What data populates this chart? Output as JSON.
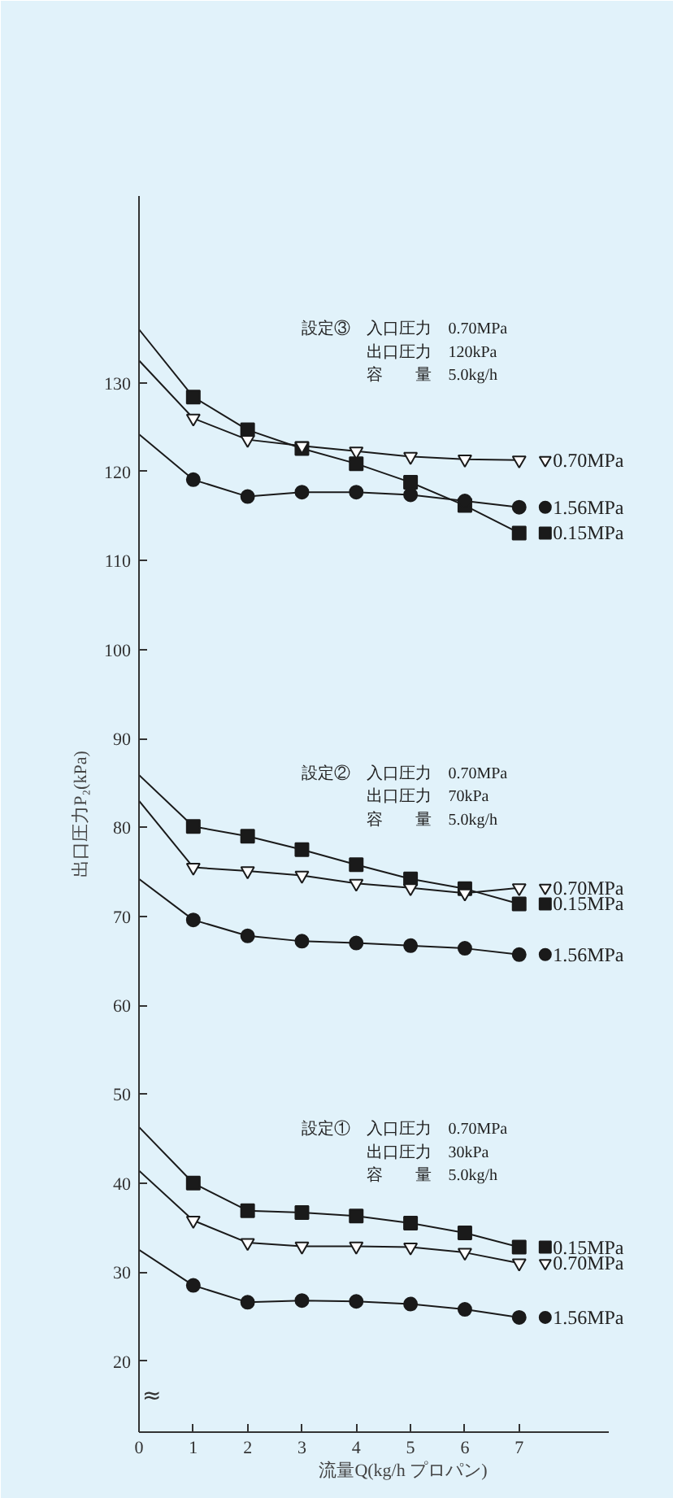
{
  "chart_data": {
    "type": "line",
    "xlabel": "流量Q(kg/h プロパン)",
    "ylabel": "出口圧力P₂(kPa)",
    "x": [
      0,
      1,
      2,
      3,
      4,
      5,
      6,
      7
    ],
    "xlim": [
      0,
      8.65
    ],
    "ylim": [
      12,
      151
    ],
    "xticks": [
      0,
      1,
      2,
      3,
      4,
      5,
      6,
      7
    ],
    "yticks": [
      20,
      30,
      40,
      50,
      60,
      70,
      80,
      90,
      100,
      110,
      120,
      130
    ],
    "grid": false,
    "legend": "right",
    "line_style": "solid",
    "series": [
      {
        "name": "0.15MPa",
        "color": "#1a1a1a",
        "marker": "square",
        "values": [
          136,
          128.4,
          124.7,
          122.6,
          120.9,
          118.8,
          116.2,
          113.1
        ]
      },
      {
        "name": "0.70MPa",
        "color": "#1a1a1a",
        "marker": "triangle",
        "values": [
          132.5,
          126.0,
          123.6,
          122.9,
          122.3,
          121.7,
          121.4,
          121.3
        ]
      },
      {
        "name": "1.56MPa",
        "color": "#1a1a1a",
        "marker": "circle",
        "values": [
          124.2,
          119.1,
          117.2,
          117.7,
          117.7,
          117.4,
          116.7,
          116.0
        ]
      },
      {
        "name": "0.15MPa",
        "color": "#1a1a1a",
        "marker": "square",
        "values": [
          85.9,
          80.1,
          79.0,
          77.5,
          75.8,
          74.2,
          73.1,
          71.4
        ]
      },
      {
        "name": "0.70MPa",
        "color": "#1a1a1a",
        "marker": "triangle",
        "values": [
          83.0,
          75.5,
          75.1,
          74.6,
          73.7,
          73.2,
          72.6,
          73.2
        ]
      },
      {
        "name": "1.56MPa",
        "color": "#1a1a1a",
        "marker": "circle",
        "values": [
          74.2,
          69.6,
          67.8,
          67.2,
          67.0,
          66.7,
          66.4,
          65.7
        ]
      },
      {
        "name": "0.15MPa",
        "color": "#1a1a1a",
        "marker": "square",
        "values": [
          46.3,
          40.0,
          36.9,
          36.7,
          36.3,
          35.5,
          34.4,
          32.8
        ]
      },
      {
        "name": "0.70MPa",
        "color": "#1a1a1a",
        "marker": "triangle",
        "values": [
          41.4,
          35.8,
          33.3,
          32.9,
          32.9,
          32.8,
          32.2,
          31.0
        ]
      },
      {
        "name": "1.56MPa",
        "color": "#1a1a1a",
        "marker": "circle",
        "values": [
          32.5,
          28.5,
          26.6,
          26.8,
          26.7,
          26.4,
          25.8,
          24.9
        ]
      }
    ],
    "annotations": [
      "設定③　入口圧力　0.70MPa\n　　　　出口圧力　120kPa\n　　　　容　　量　5.0kg/h",
      "設定②　入口圧力　0.70MPa\n　　　　出口圧力　70kPa\n　　　　容　　量　5.0kg/h",
      "設定①　入口圧力　0.70MPa\n　　　　出口圧力　30kPa\n　　　　容　　量　5.0kg/h",
      "≈"
    ]
  }
}
